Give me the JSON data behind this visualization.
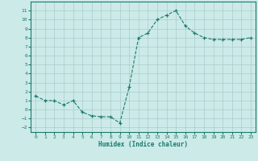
{
  "x": [
    0,
    1,
    2,
    3,
    4,
    5,
    6,
    7,
    8,
    9,
    10,
    11,
    12,
    13,
    14,
    15,
    16,
    17,
    18,
    19,
    20,
    21,
    22,
    23
  ],
  "y": [
    1.5,
    1.0,
    1.0,
    0.5,
    1.0,
    -0.3,
    -0.7,
    -0.8,
    -0.8,
    -1.5,
    2.5,
    8.0,
    8.5,
    10.0,
    10.5,
    11.0,
    9.3,
    8.5,
    8.0,
    7.8,
    7.8,
    7.8,
    7.8,
    8.0
  ],
  "line_color": "#1a7a6e",
  "marker": "+",
  "xlabel": "Humidex (Indice chaleur)",
  "ylim": [
    -2.5,
    12
  ],
  "xlim": [
    -0.5,
    23.5
  ],
  "yticks": [
    -2,
    -1,
    0,
    1,
    2,
    3,
    4,
    5,
    6,
    7,
    8,
    9,
    10,
    11
  ],
  "xticks": [
    0,
    1,
    2,
    3,
    4,
    5,
    6,
    7,
    8,
    9,
    10,
    11,
    12,
    13,
    14,
    15,
    16,
    17,
    18,
    19,
    20,
    21,
    22,
    23
  ],
  "bg_color": "#cceae7",
  "grid_color": "#aacccc",
  "figsize": [
    3.2,
    2.0
  ],
  "dpi": 100
}
